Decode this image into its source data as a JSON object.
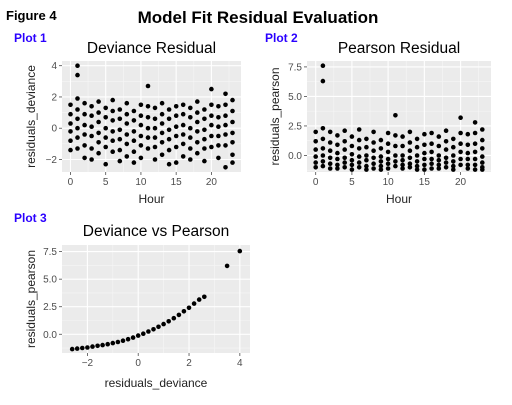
{
  "figure_label": "Figure 4",
  "main_title": "Model Fit Residual Evaluation",
  "chart_data": [
    {
      "tag": "Plot 1",
      "type": "scatter",
      "title": "Deviance Residual",
      "xlabel": "Hour",
      "ylabel": "residuals_deviance",
      "xlim": [
        -1.2,
        24.2
      ],
      "ylim": [
        -2.8,
        4.3
      ],
      "xticks": [
        0,
        5,
        10,
        15,
        20
      ],
      "yticks": [
        -2,
        0,
        2,
        4
      ],
      "grid": true,
      "marker_color": "#000000",
      "points": [
        [
          0,
          1.5
        ],
        [
          0,
          0.9
        ],
        [
          0,
          0.3
        ],
        [
          0,
          -0.2
        ],
        [
          0,
          -0.8
        ],
        [
          0,
          -1.4
        ],
        [
          1,
          4.0
        ],
        [
          1,
          3.4
        ],
        [
          1,
          1.9
        ],
        [
          1,
          1.2
        ],
        [
          1,
          0.6
        ],
        [
          1,
          0.0
        ],
        [
          1,
          -0.6
        ],
        [
          1,
          -1.3
        ],
        [
          2,
          1.6
        ],
        [
          2,
          0.9
        ],
        [
          2,
          0.2
        ],
        [
          2,
          -0.4
        ],
        [
          2,
          -1.1
        ],
        [
          2,
          -1.9
        ],
        [
          3,
          1.4
        ],
        [
          3,
          0.8
        ],
        [
          3,
          0.1
        ],
        [
          3,
          -0.5
        ],
        [
          3,
          -1.3
        ],
        [
          3,
          -2.0
        ],
        [
          4,
          1.7
        ],
        [
          4,
          1.0
        ],
        [
          4,
          0.4
        ],
        [
          4,
          -0.3
        ],
        [
          4,
          -0.9
        ],
        [
          4,
          -1.6
        ],
        [
          5,
          1.3
        ],
        [
          5,
          0.7
        ],
        [
          5,
          0.0
        ],
        [
          5,
          -0.6
        ],
        [
          5,
          -1.2
        ],
        [
          5,
          -2.3
        ],
        [
          6,
          1.8
        ],
        [
          6,
          1.1
        ],
        [
          6,
          0.5
        ],
        [
          6,
          -0.2
        ],
        [
          6,
          -0.8
        ],
        [
          6,
          -1.5
        ],
        [
          7,
          1.2
        ],
        [
          7,
          0.6
        ],
        [
          7,
          -0.1
        ],
        [
          7,
          -0.7
        ],
        [
          7,
          -1.4
        ],
        [
          7,
          -2.1
        ],
        [
          8,
          1.6
        ],
        [
          8,
          0.9
        ],
        [
          8,
          0.3
        ],
        [
          8,
          -0.4
        ],
        [
          8,
          -1.0
        ],
        [
          8,
          -1.8
        ],
        [
          9,
          1.1
        ],
        [
          9,
          0.5
        ],
        [
          9,
          -0.2
        ],
        [
          9,
          -0.8
        ],
        [
          9,
          -1.5
        ],
        [
          9,
          -2.2
        ],
        [
          10,
          1.5
        ],
        [
          10,
          0.8
        ],
        [
          10,
          0.2
        ],
        [
          10,
          -0.5
        ],
        [
          10,
          -1.1
        ],
        [
          10,
          -1.9
        ],
        [
          11,
          2.7
        ],
        [
          11,
          1.4
        ],
        [
          11,
          0.7
        ],
        [
          11,
          0.0
        ],
        [
          11,
          -0.6
        ],
        [
          11,
          -1.3
        ],
        [
          12,
          1.3
        ],
        [
          12,
          0.6
        ],
        [
          12,
          0.0
        ],
        [
          12,
          -0.6
        ],
        [
          12,
          -1.2
        ],
        [
          12,
          -2.0
        ],
        [
          13,
          1.6
        ],
        [
          13,
          0.9
        ],
        [
          13,
          0.3
        ],
        [
          13,
          -0.3
        ],
        [
          13,
          -0.9
        ],
        [
          13,
          -1.7
        ],
        [
          14,
          1.2
        ],
        [
          14,
          0.6
        ],
        [
          14,
          -0.1
        ],
        [
          14,
          -0.7
        ],
        [
          14,
          -1.4
        ],
        [
          14,
          -2.3
        ],
        [
          15,
          1.4
        ],
        [
          15,
          0.8
        ],
        [
          15,
          0.1
        ],
        [
          15,
          -0.5
        ],
        [
          15,
          -1.2
        ],
        [
          15,
          -2.2
        ],
        [
          16,
          1.5
        ],
        [
          16,
          0.9
        ],
        [
          16,
          0.2
        ],
        [
          16,
          -0.4
        ],
        [
          16,
          -1.0
        ],
        [
          16,
          -1.8
        ],
        [
          17,
          1.3
        ],
        [
          17,
          0.7
        ],
        [
          17,
          0.0
        ],
        [
          17,
          -0.6
        ],
        [
          17,
          -1.3
        ],
        [
          17,
          -2.0
        ],
        [
          18,
          1.7
        ],
        [
          18,
          1.0
        ],
        [
          18,
          0.4
        ],
        [
          18,
          -0.2
        ],
        [
          18,
          -0.9
        ],
        [
          18,
          -1.6
        ],
        [
          19,
          1.2
        ],
        [
          19,
          0.6
        ],
        [
          19,
          -0.1
        ],
        [
          19,
          -0.7
        ],
        [
          19,
          -1.3
        ],
        [
          19,
          -2.1
        ],
        [
          20,
          2.5
        ],
        [
          20,
          1.5
        ],
        [
          20,
          0.8
        ],
        [
          20,
          0.2
        ],
        [
          20,
          -0.5
        ],
        [
          20,
          -1.2
        ],
        [
          21,
          1.4
        ],
        [
          21,
          0.7
        ],
        [
          21,
          0.1
        ],
        [
          21,
          -0.5
        ],
        [
          21,
          -1.1
        ],
        [
          21,
          -1.9
        ],
        [
          22,
          2.2
        ],
        [
          22,
          1.5
        ],
        [
          22,
          0.8
        ],
        [
          22,
          0.2
        ],
        [
          22,
          -0.4
        ],
        [
          22,
          -1.1
        ],
        [
          22,
          -2.5
        ],
        [
          23,
          1.8
        ],
        [
          23,
          1.1
        ],
        [
          23,
          0.4
        ],
        [
          23,
          -0.3
        ],
        [
          23,
          -0.9
        ],
        [
          23,
          -1.7
        ],
        [
          23,
          -2.2
        ]
      ]
    },
    {
      "tag": "Plot 2",
      "type": "scatter",
      "title": "Pearson Residual",
      "xlabel": "Hour",
      "ylabel": "residuals_pearson",
      "xlim": [
        -1.2,
        24.2
      ],
      "ylim": [
        -1.4,
        8.0
      ],
      "xticks": [
        0,
        5,
        10,
        15,
        20
      ],
      "yticks": [
        0.0,
        2.5,
        5.0,
        7.5
      ],
      "ytick_labels": [
        "0.0",
        "2.5",
        "5.0",
        "7.5"
      ],
      "grid": true,
      "marker_color": "#000000",
      "points": [
        [
          0,
          2.0
        ],
        [
          0,
          1.2
        ],
        [
          0,
          0.5
        ],
        [
          0,
          -0.1
        ],
        [
          0,
          -0.6
        ],
        [
          0,
          -1.0
        ],
        [
          1,
          7.6
        ],
        [
          1,
          6.3
        ],
        [
          1,
          2.3
        ],
        [
          1,
          1.4
        ],
        [
          1,
          0.6
        ],
        [
          1,
          0.0
        ],
        [
          1,
          -0.5
        ],
        [
          1,
          -0.9
        ],
        [
          2,
          2.0
        ],
        [
          2,
          1.1
        ],
        [
          2,
          0.4
        ],
        [
          2,
          -0.2
        ],
        [
          2,
          -0.7
        ],
        [
          2,
          -1.1
        ],
        [
          3,
          1.7
        ],
        [
          3,
          0.9
        ],
        [
          3,
          0.2
        ],
        [
          3,
          -0.3
        ],
        [
          3,
          -0.8
        ],
        [
          3,
          -1.1
        ],
        [
          4,
          2.1
        ],
        [
          4,
          1.2
        ],
        [
          4,
          0.5
        ],
        [
          4,
          -0.2
        ],
        [
          4,
          -0.6
        ],
        [
          4,
          -1.0
        ],
        [
          5,
          1.6
        ],
        [
          5,
          0.8
        ],
        [
          5,
          0.1
        ],
        [
          5,
          -0.4
        ],
        [
          5,
          -0.8
        ],
        [
          5,
          -1.2
        ],
        [
          6,
          2.2
        ],
        [
          6,
          1.3
        ],
        [
          6,
          0.6
        ],
        [
          6,
          -0.1
        ],
        [
          6,
          -0.6
        ],
        [
          6,
          -1.0
        ],
        [
          7,
          1.4
        ],
        [
          7,
          0.7
        ],
        [
          7,
          0.0
        ],
        [
          7,
          -0.4
        ],
        [
          7,
          -0.9
        ],
        [
          7,
          -1.2
        ],
        [
          8,
          2.0
        ],
        [
          8,
          1.1
        ],
        [
          8,
          0.4
        ],
        [
          8,
          -0.2
        ],
        [
          8,
          -0.7
        ],
        [
          8,
          -1.1
        ],
        [
          9,
          1.3
        ],
        [
          9,
          0.6
        ],
        [
          9,
          -0.1
        ],
        [
          9,
          -0.5
        ],
        [
          9,
          -0.9
        ],
        [
          9,
          -1.2
        ],
        [
          10,
          1.9
        ],
        [
          10,
          1.0
        ],
        [
          10,
          0.3
        ],
        [
          10,
          -0.3
        ],
        [
          10,
          -0.7
        ],
        [
          10,
          -1.1
        ],
        [
          11,
          3.4
        ],
        [
          11,
          1.7
        ],
        [
          11,
          0.8
        ],
        [
          11,
          0.0
        ],
        [
          11,
          -0.5
        ],
        [
          11,
          -0.9
        ],
        [
          12,
          1.6
        ],
        [
          12,
          0.8
        ],
        [
          12,
          0.0
        ],
        [
          12,
          -0.4
        ],
        [
          12,
          -0.8
        ],
        [
          12,
          -1.1
        ],
        [
          13,
          2.0
        ],
        [
          13,
          1.1
        ],
        [
          13,
          0.4
        ],
        [
          13,
          -0.2
        ],
        [
          13,
          -0.7
        ],
        [
          13,
          -1.0
        ],
        [
          14,
          1.4
        ],
        [
          14,
          0.7
        ],
        [
          14,
          0.0
        ],
        [
          14,
          -0.5
        ],
        [
          14,
          -0.9
        ],
        [
          14,
          -1.2
        ],
        [
          15,
          1.8
        ],
        [
          15,
          0.9
        ],
        [
          15,
          0.2
        ],
        [
          15,
          -0.3
        ],
        [
          15,
          -0.8
        ],
        [
          15,
          -1.2
        ],
        [
          16,
          1.9
        ],
        [
          16,
          1.0
        ],
        [
          16,
          0.3
        ],
        [
          16,
          -0.3
        ],
        [
          16,
          -0.7
        ],
        [
          16,
          -1.1
        ],
        [
          17,
          1.6
        ],
        [
          17,
          0.8
        ],
        [
          17,
          0.0
        ],
        [
          17,
          -0.4
        ],
        [
          17,
          -0.8
        ],
        [
          17,
          -1.1
        ],
        [
          18,
          2.1
        ],
        [
          18,
          1.2
        ],
        [
          18,
          0.5
        ],
        [
          18,
          -0.2
        ],
        [
          18,
          -0.6
        ],
        [
          18,
          -1.0
        ],
        [
          19,
          1.4
        ],
        [
          19,
          0.7
        ],
        [
          19,
          0.0
        ],
        [
          19,
          -0.5
        ],
        [
          19,
          -0.9
        ],
        [
          19,
          -1.2
        ],
        [
          20,
          3.2
        ],
        [
          20,
          1.9
        ],
        [
          20,
          1.0
        ],
        [
          20,
          0.3
        ],
        [
          20,
          -0.3
        ],
        [
          20,
          -0.8
        ],
        [
          21,
          1.8
        ],
        [
          21,
          0.9
        ],
        [
          21,
          0.2
        ],
        [
          21,
          -0.3
        ],
        [
          21,
          -0.8
        ],
        [
          21,
          -1.1
        ],
        [
          22,
          2.8
        ],
        [
          22,
          1.9
        ],
        [
          22,
          1.0
        ],
        [
          22,
          0.3
        ],
        [
          22,
          -0.3
        ],
        [
          22,
          -0.8
        ],
        [
          22,
          -1.2
        ],
        [
          23,
          2.2
        ],
        [
          23,
          1.3
        ],
        [
          23,
          0.6
        ],
        [
          23,
          -0.1
        ],
        [
          23,
          -0.6
        ],
        [
          23,
          -1.0
        ],
        [
          23,
          -1.2
        ]
      ]
    },
    {
      "tag": "Plot 3",
      "type": "scatter",
      "title": "Deviance vs Pearson",
      "xlabel": "residuals_deviance",
      "ylabel": "residuals_pearson",
      "xlim": [
        -3.0,
        4.4
      ],
      "ylim": [
        -1.7,
        8.1
      ],
      "xticks": [
        -2,
        0,
        2,
        4
      ],
      "yticks": [
        0.0,
        2.5,
        5.0,
        7.5
      ],
      "ytick_labels": [
        "0.0",
        "2.5",
        "5.0",
        "7.5"
      ],
      "grid": true,
      "marker_color": "#000000",
      "points": [
        [
          -2.6,
          -1.35
        ],
        [
          -2.4,
          -1.3
        ],
        [
          -2.2,
          -1.25
        ],
        [
          -2.0,
          -1.2
        ],
        [
          -1.8,
          -1.12
        ],
        [
          -1.6,
          -1.05
        ],
        [
          -1.4,
          -0.98
        ],
        [
          -1.2,
          -0.9
        ],
        [
          -1.0,
          -0.8
        ],
        [
          -0.8,
          -0.7
        ],
        [
          -0.6,
          -0.58
        ],
        [
          -0.4,
          -0.45
        ],
        [
          -0.2,
          -0.3
        ],
        [
          0.0,
          -0.12
        ],
        [
          0.2,
          0.05
        ],
        [
          0.4,
          0.25
        ],
        [
          0.6,
          0.45
        ],
        [
          0.8,
          0.68
        ],
        [
          1.0,
          0.92
        ],
        [
          1.2,
          1.18
        ],
        [
          1.4,
          1.46
        ],
        [
          1.6,
          1.76
        ],
        [
          1.8,
          2.08
        ],
        [
          2.0,
          2.4
        ],
        [
          2.2,
          2.78
        ],
        [
          2.4,
          3.15
        ],
        [
          2.6,
          3.4
        ],
        [
          3.5,
          6.2
        ],
        [
          4.0,
          7.55
        ]
      ]
    }
  ]
}
